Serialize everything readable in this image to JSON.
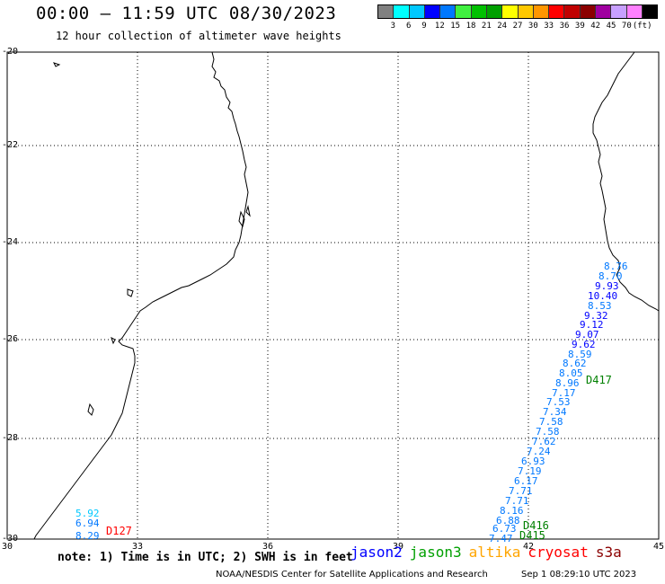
{
  "header": {
    "title": "00:00 – 11:59 UTC 08/30/2023",
    "subtitle": "12 hour collection of altimeter wave heights"
  },
  "scale": {
    "colors": [
      "#808080",
      "#00ffff",
      "#00c8ff",
      "#0000ff",
      "#0078ff",
      "#40f040",
      "#00c000",
      "#00a000",
      "#ffff00",
      "#ffc800",
      "#ff9600",
      "#ff0000",
      "#c00000",
      "#8b0000",
      "#a000a0",
      "#c8a0ff",
      "#ff80ff",
      "#000000"
    ],
    "labels": [
      "3",
      "6",
      "9",
      "12",
      "15",
      "18",
      "21",
      "24",
      "27",
      "30",
      "33",
      "36",
      "39",
      "42",
      "45",
      "70",
      "(ft)"
    ]
  },
  "map": {
    "lat_labels": [
      "-20",
      "-22",
      "-24",
      "-26",
      "-28",
      "-30"
    ],
    "lon_labels": [
      "30",
      "33",
      "36",
      "39",
      "42",
      "45"
    ]
  },
  "swh_readings": [
    {
      "value": "8.76",
      "color": "#0078ff"
    },
    {
      "value": "8.70",
      "color": "#0078ff"
    },
    {
      "value": "9.93",
      "color": "#0000ff"
    },
    {
      "value": "10.40",
      "color": "#0000ff"
    },
    {
      "value": "8.53",
      "color": "#0078ff"
    },
    {
      "value": "9.32",
      "color": "#0000ff"
    },
    {
      "value": "9.12",
      "color": "#0000ff"
    },
    {
      "value": "9.07",
      "color": "#0000ff"
    },
    {
      "value": "9.62",
      "color": "#0000ff"
    },
    {
      "value": "8.59",
      "color": "#0078ff"
    },
    {
      "value": "8.62",
      "color": "#0078ff"
    },
    {
      "value": "8.05",
      "color": "#0078ff"
    },
    {
      "value": "8.96",
      "color": "#0078ff"
    },
    {
      "value": "7.17",
      "color": "#0078ff"
    },
    {
      "value": "7.53",
      "color": "#0078ff"
    },
    {
      "value": "7.34",
      "color": "#0078ff"
    },
    {
      "value": "7.58",
      "color": "#0078ff"
    },
    {
      "value": "7.58",
      "color": "#0078ff"
    },
    {
      "value": "7.62",
      "color": "#0078ff"
    },
    {
      "value": "7.24",
      "color": "#0078ff"
    },
    {
      "value": "6.93",
      "color": "#0078ff"
    },
    {
      "value": "7.19",
      "color": "#0078ff"
    },
    {
      "value": "6.17",
      "color": "#0078ff"
    },
    {
      "value": "7.71",
      "color": "#0078ff"
    },
    {
      "value": "7.71",
      "color": "#0078ff"
    },
    {
      "value": "8.16",
      "color": "#0078ff"
    },
    {
      "value": "6.88",
      "color": "#0078ff"
    },
    {
      "value": "6.73",
      "color": "#0078ff"
    },
    {
      "value": "7.47",
      "color": "#0078ff"
    },
    {
      "value": "5.92",
      "color": "#00c8ff"
    },
    {
      "value": "6.94",
      "color": "#0078ff"
    },
    {
      "value": "8.29",
      "color": "#0078ff"
    }
  ],
  "passes": [
    {
      "label": "D417",
      "color": "#008000"
    },
    {
      "label": "D416",
      "color": "#008000"
    },
    {
      "label": "D415",
      "color": "#008000"
    },
    {
      "label": "D127",
      "color": "#ff0000"
    }
  ],
  "note": "note: 1) Time is in UTC; 2) SWH is in feet",
  "legend": [
    {
      "name": "jason2",
      "color": "#0000ff"
    },
    {
      "name": "jason3",
      "color": "#00a000"
    },
    {
      "name": "altika",
      "color": "#ffa500"
    },
    {
      "name": "cryosat",
      "color": "#ff0000"
    },
    {
      "name": "s3a",
      "color": "#8b0000"
    }
  ],
  "footer": "NOAA/NESDIS Center for Satellite Applications and Research",
  "timestamp": "Sep  1 08:29:10 UTC 2023"
}
